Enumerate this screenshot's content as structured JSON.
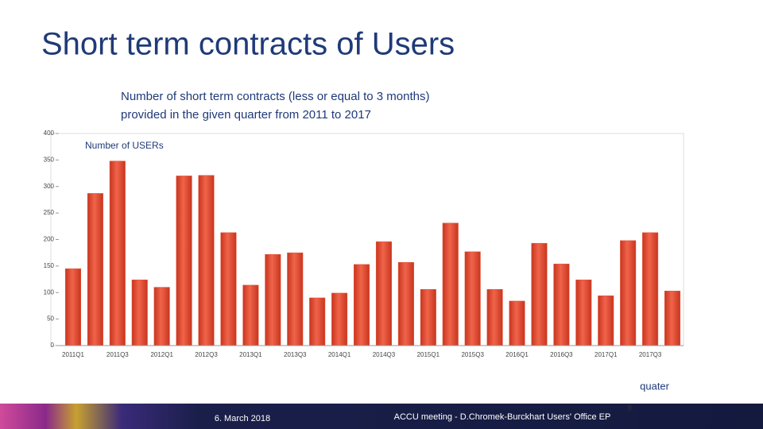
{
  "slide": {
    "title": "Short term contracts of Users",
    "footer_date": "6. March 2018",
    "footer_text": "ACCU meeting - D.Chromek-Burckhart Users' Office EP",
    "page_number": "9"
  },
  "chart_data": {
    "type": "bar",
    "subtitle": [
      "Number of short term contracts (less or equal to 3 months)",
      "provided in the given quarter from 2011 to 2017"
    ],
    "y_label": "Number of USERs",
    "x_label": "quater",
    "categories": [
      "2011Q1",
      null,
      "2011Q3",
      null,
      "2012Q1",
      null,
      "2012Q3",
      null,
      "2013Q1",
      null,
      "2013Q3",
      null,
      "2014Q1",
      null,
      "2014Q3",
      null,
      "2015Q1",
      null,
      "2015Q3",
      null,
      "2016Q1",
      null,
      "2016Q3",
      null,
      "2017Q1",
      null,
      "2017Q3",
      null
    ],
    "values": [
      145,
      287,
      348,
      124,
      110,
      320,
      321,
      213,
      114,
      172,
      175,
      90,
      99,
      153,
      196,
      157,
      106,
      231,
      177,
      106,
      84,
      193,
      154,
      124,
      94,
      198,
      213,
      103
    ],
    "color": "#e8563a",
    "ylim": [
      0,
      400
    ],
    "yticks": [
      0,
      50,
      100,
      150,
      200,
      250,
      300,
      350,
      400
    ],
    "grid": false
  }
}
